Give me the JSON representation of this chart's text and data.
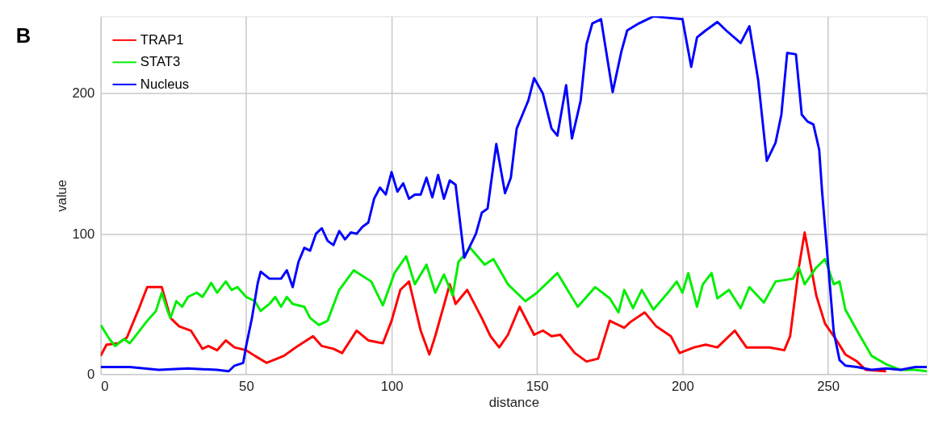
{
  "chart_data": {
    "type": "line",
    "xlabel": "distance",
    "ylabel": "value",
    "xlim": [
      0,
      284
    ],
    "ylim": [
      0,
      255
    ],
    "xticks": [
      0,
      50,
      100,
      150,
      200,
      250
    ],
    "yticks": [
      0,
      100,
      200
    ],
    "grid": true,
    "legend": "top left",
    "marker": "none",
    "line_style": "solid",
    "annotations": [
      "B"
    ],
    "series": [
      {
        "name": "TRAP1",
        "color": "#ff0000",
        "x": [
          0,
          2,
          6,
          9,
          13,
          16,
          21,
          24,
          27,
          31,
          35,
          37,
          40,
          43,
          46,
          50,
          53,
          57,
          63,
          67,
          73,
          76,
          80,
          83,
          88,
          92,
          97,
          100,
          103,
          106,
          110,
          113,
          115,
          120,
          122,
          126,
          131,
          134,
          137,
          140,
          144,
          149,
          152,
          155,
          158,
          163,
          167,
          171,
          175,
          180,
          182,
          187,
          191,
          196,
          199,
          204,
          208,
          212,
          218,
          222,
          230,
          235,
          237,
          240,
          242,
          246,
          249,
          253,
          256,
          260,
          263,
          270
        ],
        "values": [
          13,
          21,
          22,
          26,
          46,
          62,
          62,
          40,
          34,
          31,
          18,
          20,
          17,
          24,
          19,
          17,
          13,
          8,
          13,
          19,
          27,
          20,
          18,
          15,
          31,
          24,
          22,
          38,
          60,
          66,
          31,
          14,
          27,
          64,
          50,
          60,
          40,
          27,
          19,
          28,
          48,
          28,
          31,
          27,
          28,
          15,
          9,
          11,
          38,
          33,
          37,
          44,
          34,
          27,
          15,
          19,
          21,
          19,
          31,
          19,
          19,
          17,
          27,
          76,
          101,
          56,
          36,
          24,
          14,
          9,
          3,
          2
        ]
      },
      {
        "name": "STAT3",
        "color": "#00ee00",
        "x": [
          0,
          3,
          5,
          8,
          10,
          13,
          16,
          19,
          21,
          23,
          24,
          26,
          28,
          30,
          33,
          35,
          38,
          40,
          43,
          45,
          47,
          50,
          53,
          55,
          58,
          60,
          62,
          64,
          66,
          70,
          72,
          75,
          78,
          82,
          87,
          93,
          97,
          101,
          105,
          108,
          112,
          115,
          118,
          121,
          123,
          127,
          132,
          135,
          140,
          146,
          150,
          157,
          164,
          170,
          175,
          178,
          180,
          183,
          186,
          190,
          195,
          198,
          200,
          202,
          205,
          207,
          210,
          212,
          216,
          220,
          223,
          228,
          232,
          238,
          240,
          242,
          246,
          249,
          252,
          254,
          256,
          260,
          265,
          270,
          275,
          280,
          284
        ],
        "values": [
          35,
          25,
          20,
          25,
          22,
          30,
          38,
          45,
          58,
          45,
          40,
          52,
          48,
          55,
          58,
          55,
          65,
          58,
          66,
          60,
          62,
          55,
          52,
          45,
          50,
          55,
          48,
          55,
          50,
          48,
          40,
          35,
          38,
          60,
          74,
          66,
          49,
          72,
          84,
          64,
          78,
          58,
          71,
          56,
          80,
          90,
          78,
          82,
          64,
          52,
          58,
          72,
          48,
          62,
          54,
          44,
          60,
          47,
          60,
          46,
          58,
          66,
          58,
          72,
          48,
          64,
          72,
          54,
          60,
          47,
          62,
          51,
          66,
          68,
          76,
          64,
          76,
          82,
          64,
          66,
          46,
          31,
          13,
          7,
          3,
          3,
          2
        ]
      },
      {
        "name": "Nucleus",
        "color": "#0000ff",
        "x": [
          0,
          10,
          20,
          30,
          40,
          44,
          46,
          49,
          50,
          52,
          54,
          55,
          58,
          62,
          64,
          66,
          68,
          70,
          72,
          74,
          76,
          78,
          80,
          82,
          84,
          86,
          88,
          90,
          92,
          94,
          96,
          98,
          100,
          102,
          104,
          106,
          108,
          110,
          112,
          114,
          116,
          118,
          120,
          122,
          125,
          129,
          131,
          133,
          136,
          139,
          141,
          143,
          145,
          147,
          149,
          152,
          155,
          157,
          160,
          162,
          165,
          167,
          169,
          172,
          176,
          179,
          181,
          185,
          190,
          195,
          200,
          203,
          205,
          208,
          212,
          215,
          220,
          223,
          226,
          229,
          232,
          234,
          236,
          239,
          241,
          243,
          245,
          247,
          248,
          250,
          252,
          254,
          256,
          260,
          265,
          270,
          275,
          280,
          284
        ],
        "values": [
          5,
          5,
          3,
          4,
          3,
          2,
          6,
          8,
          20,
          40,
          65,
          73,
          68,
          68,
          74,
          62,
          80,
          90,
          88,
          100,
          104,
          95,
          92,
          102,
          96,
          101,
          100,
          105,
          108,
          125,
          133,
          128,
          144,
          130,
          136,
          125,
          128,
          128,
          140,
          126,
          142,
          125,
          138,
          135,
          83,
          100,
          115,
          118,
          164,
          129,
          140,
          175,
          185,
          195,
          211,
          200,
          175,
          170,
          206,
          168,
          195,
          235,
          250,
          253,
          201,
          230,
          245,
          250,
          255,
          254,
          253,
          219,
          240,
          245,
          251,
          245,
          236,
          248,
          210,
          152,
          165,
          185,
          229,
          228,
          185,
          180,
          178,
          160,
          130,
          80,
          30,
          10,
          6,
          5,
          3,
          4,
          3,
          5,
          5
        ]
      }
    ]
  }
}
